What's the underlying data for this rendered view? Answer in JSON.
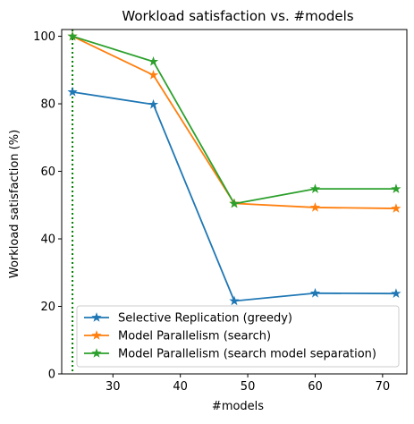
{
  "chart_data": {
    "type": "line",
    "title": "Workload satisfaction vs. #models",
    "xlabel": "#models",
    "ylabel": "Workload satisfaction (%)",
    "xlim": [
      22.4,
      73.6
    ],
    "ylim": [
      0,
      102
    ],
    "xticks": [
      30,
      40,
      50,
      60,
      70
    ],
    "yticks": [
      0,
      20,
      40,
      60,
      80,
      100
    ],
    "x": [
      24,
      36,
      48,
      60,
      72
    ],
    "marker": "star",
    "grid": false,
    "legend_position": "lower-left",
    "series": [
      {
        "name": "Selective Replication (greedy)",
        "color": "#1f77b4",
        "values": [
          83.5,
          79.8,
          21.6,
          23.9,
          23.8
        ]
      },
      {
        "name": "Model Parallelism (search)",
        "color": "#ff7f0e",
        "values": [
          100,
          88.5,
          50.5,
          49.3,
          49.0
        ]
      },
      {
        "name": "Model Parallelism (search model separation)",
        "color": "#2ca02c",
        "values": [
          100,
          92.5,
          50.4,
          54.8,
          54.8
        ]
      }
    ],
    "reference_line": {
      "orientation": "vertical",
      "x": 24,
      "style": "dotted",
      "color": "#008000"
    }
  }
}
